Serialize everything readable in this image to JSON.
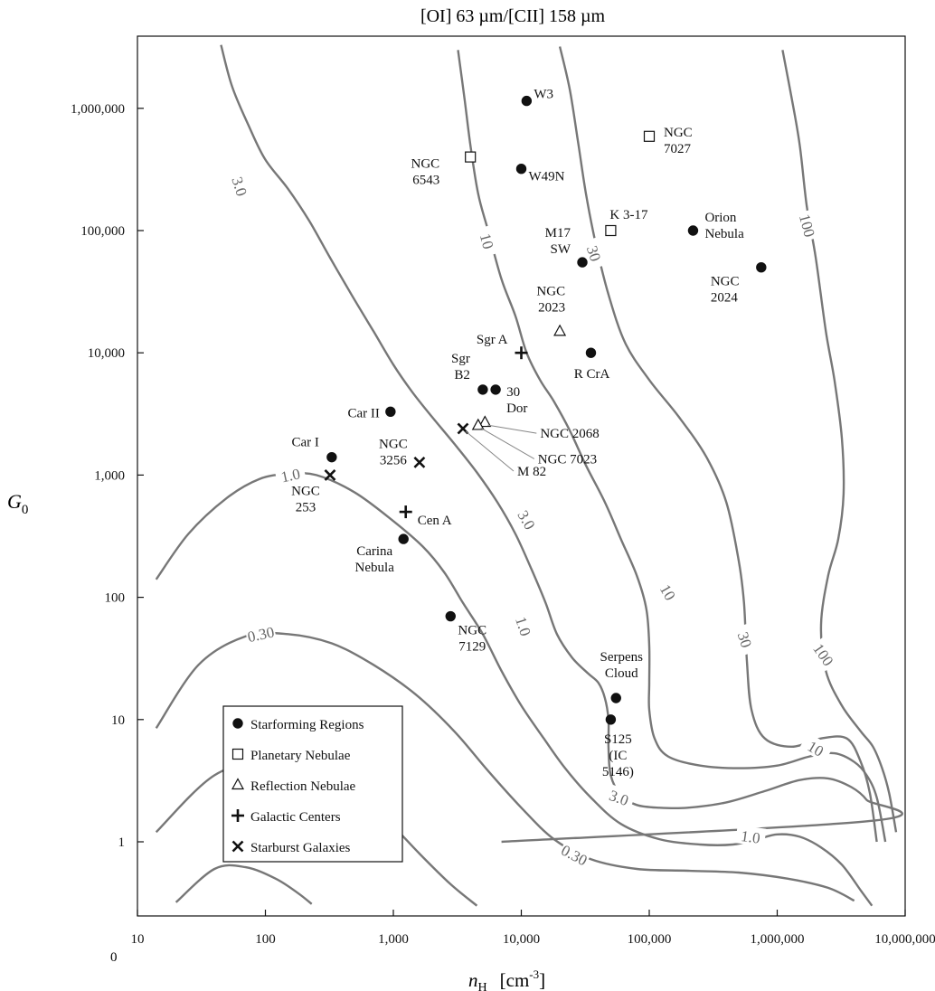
{
  "chart_data": {
    "type": "scatter",
    "title": "[OI] 63 µm/[CII] 158 µm",
    "xlabel": {
      "main": "n",
      "sub": "H",
      "units": "[cm",
      "exp": "-3",
      "close": "]"
    },
    "ylabel": {
      "main": "G",
      "sub": "0"
    },
    "x_scale": "log",
    "y_scale": "log",
    "xlim": [
      10,
      10000000
    ],
    "ylim": [
      0.3,
      3000000
    ],
    "x_ticks": [
      {
        "v": 10,
        "label": "10"
      },
      {
        "v": 100,
        "label": "100"
      },
      {
        "v": 1000,
        "label": "1,000"
      },
      {
        "v": 10000,
        "label": "10,000"
      },
      {
        "v": 100000,
        "label": "100,000"
      },
      {
        "v": 1000000,
        "label": "1,000,000"
      },
      {
        "v": 10000000,
        "label": "10,000,000"
      }
    ],
    "y_ticks": [
      {
        "v": 1,
        "label": "1"
      },
      {
        "v": 10,
        "label": "10"
      },
      {
        "v": 100,
        "label": "100"
      },
      {
        "v": 1000,
        "label": "1,000"
      },
      {
        "v": 10000,
        "label": "10,000"
      },
      {
        "v": 100000,
        "label": "100,000"
      },
      {
        "v": 1000000,
        "label": "1,000,000"
      }
    ],
    "corner_label": "0",
    "legend": {
      "placement": "bottom-left",
      "entries": [
        {
          "marker": "circle",
          "label": "Starforming Regions"
        },
        {
          "marker": "square",
          "label": "Planetary Nebulae"
        },
        {
          "marker": "triangle",
          "label": "Reflection Nebulae"
        },
        {
          "marker": "plus",
          "label": "Galactic Centers"
        },
        {
          "marker": "cross",
          "label": "Starburst Galaxies"
        }
      ]
    },
    "contours": [
      {
        "level": "0.30",
        "points": [
          [
            14,
            8.5
          ],
          [
            30,
            28
          ],
          [
            70,
            48
          ],
          [
            150,
            50
          ],
          [
            330,
            42
          ],
          [
            700,
            28
          ],
          [
            1500,
            16
          ],
          [
            3000,
            8
          ],
          [
            5500,
            3.8
          ],
          [
            10000,
            1.9
          ],
          [
            18000,
            1.05
          ],
          [
            35000,
            0.72
          ],
          [
            80000,
            0.6
          ],
          [
            200000,
            0.58
          ],
          [
            500000,
            0.56
          ],
          [
            1200000,
            0.5
          ],
          [
            2500000,
            0.42
          ],
          [
            4000000,
            0.33
          ]
        ],
        "labels": [
          {
            "at": [
              92,
              50
            ],
            "text": "0.30",
            "rot": -12
          },
          {
            "at": [
              26000,
              0.78
            ],
            "text": "0.30",
            "rot": 28
          }
        ]
      },
      {
        "level": "0.30",
        "points": [
          [
            14,
            1.2
          ],
          [
            40,
            3.5
          ],
          [
            110,
            4.6
          ],
          [
            250,
            4
          ],
          [
            500,
            2.6
          ],
          [
            900,
            1.5
          ],
          [
            1600,
            0.8
          ],
          [
            2800,
            0.45
          ],
          [
            4500,
            0.3
          ]
        ],
        "labels": []
      },
      {
        "level": "0.30",
        "points": [
          [
            20,
            0.32
          ],
          [
            40,
            0.6
          ],
          [
            70,
            0.62
          ],
          [
            120,
            0.5
          ],
          [
            180,
            0.38
          ],
          [
            230,
            0.31
          ]
        ],
        "labels": []
      },
      {
        "level": "1.0",
        "points": [
          [
            14,
            140
          ],
          [
            25,
            330
          ],
          [
            50,
            650
          ],
          [
            90,
            930
          ],
          [
            150,
            1020
          ],
          [
            250,
            1000
          ],
          [
            500,
            720
          ],
          [
            1000,
            420
          ],
          [
            1700,
            260
          ],
          [
            2500,
            160
          ],
          [
            3500,
            90
          ],
          [
            5000,
            50
          ],
          [
            7000,
            25
          ],
          [
            10000,
            13
          ],
          [
            15000,
            7
          ],
          [
            22000,
            4
          ],
          [
            35000,
            2.3
          ],
          [
            60000,
            1.4
          ],
          [
            120000,
            1.05
          ],
          [
            250000,
            0.95
          ],
          [
            450000,
            0.95
          ],
          [
            700000,
            1.05
          ],
          [
            1000000,
            1.15
          ],
          [
            1500000,
            1.1
          ],
          [
            2200000,
            0.9
          ],
          [
            3200000,
            0.65
          ],
          [
            4500000,
            0.4
          ],
          [
            5500000,
            0.3
          ]
        ],
        "labels": [
          {
            "at": [
              157,
              1000
            ],
            "text": "1.0",
            "rot": -12
          },
          {
            "at": [
              10400,
              58
            ],
            "text": "1.0",
            "rot": 72
          },
          {
            "at": [
              620000,
              1.1
            ],
            "text": "1.0",
            "rot": 8
          }
        ]
      },
      {
        "level": "3.0",
        "points": [
          [
            45,
            3300000
          ],
          [
            55,
            1500000
          ],
          [
            75,
            700000
          ],
          [
            100,
            380000
          ],
          [
            150,
            220000
          ],
          [
            220,
            120000
          ],
          [
            320,
            60000
          ],
          [
            470,
            30000
          ],
          [
            700,
            15000
          ],
          [
            1000,
            8000
          ],
          [
            1400,
            4800
          ],
          [
            2000,
            3000
          ],
          [
            3000,
            1800
          ],
          [
            4500,
            1050
          ],
          [
            6500,
            600
          ],
          [
            9000,
            330
          ],
          [
            12000,
            170
          ],
          [
            15500,
            90
          ],
          [
            19000,
            50
          ],
          [
            25000,
            32
          ],
          [
            33000,
            24
          ],
          [
            40000,
            20
          ],
          [
            45000,
            15
          ],
          [
            48000,
            10
          ],
          [
            48000,
            6
          ],
          [
            50000,
            3.5
          ],
          [
            60000,
            2.4
          ],
          [
            80000,
            2
          ],
          [
            120000,
            1.9
          ],
          [
            200000,
            1.9
          ],
          [
            400000,
            2.1
          ],
          [
            800000,
            2.6
          ],
          [
            1500000,
            3.2
          ],
          [
            2500000,
            3.3
          ],
          [
            3800000,
            2.8
          ],
          [
            5000000,
            2.2
          ],
          [
            6000000,
            1.5
          ],
          [
            7000,
            1
          ]
        ],
        "labels": [
          {
            "at": [
              63,
              230000
            ],
            "text": "3.0",
            "rot": 72
          },
          {
            "at": [
              11000,
              430
            ],
            "text": "3.0",
            "rot": 60
          },
          {
            "at": [
              58000,
              2.3
            ],
            "text": "3.0",
            "rot": 20
          }
        ]
      },
      {
        "level": "10",
        "points": [
          [
            3200,
            3000000
          ],
          [
            3600,
            1200000
          ],
          [
            4000,
            500000
          ],
          [
            4600,
            200000
          ],
          [
            5500,
            100000
          ],
          [
            7000,
            40000
          ],
          [
            9000,
            20000
          ],
          [
            11000,
            10000
          ],
          [
            14000,
            6000
          ],
          [
            18000,
            4000
          ],
          [
            24000,
            2300
          ],
          [
            32000,
            1200
          ],
          [
            45000,
            600
          ],
          [
            60000,
            300
          ],
          [
            80000,
            150
          ],
          [
            95000,
            80
          ],
          [
            100000,
            40
          ],
          [
            100000,
            20
          ],
          [
            100000,
            12
          ],
          [
            110000,
            7
          ],
          [
            140000,
            5
          ],
          [
            250000,
            4.2
          ],
          [
            500000,
            4
          ],
          [
            1000000,
            4.2
          ],
          [
            1800000,
            5
          ],
          [
            2800000,
            5.3
          ],
          [
            4000000,
            4.5
          ],
          [
            5000000,
            3.5
          ],
          [
            6000000,
            2.3
          ],
          [
            7000000,
            1
          ]
        ],
        "labels": [
          {
            "at": [
              5400,
              82000
            ],
            "text": "10",
            "rot": 75
          },
          {
            "at": [
              140000,
              110
            ],
            "text": "10",
            "rot": 60
          },
          {
            "at": [
              2000000,
              5.8
            ],
            "text": "10",
            "rot": 30
          }
        ]
      },
      {
        "level": "30",
        "points": [
          [
            20000,
            3200000
          ],
          [
            24000,
            1400000
          ],
          [
            28000,
            500000
          ],
          [
            32000,
            200000
          ],
          [
            38000,
            80000
          ],
          [
            48000,
            30000
          ],
          [
            65000,
            12000
          ],
          [
            100000,
            6000
          ],
          [
            170000,
            3000
          ],
          [
            280000,
            1400
          ],
          [
            400000,
            600
          ],
          [
            500000,
            200
          ],
          [
            550000,
            90
          ],
          [
            580000,
            30
          ],
          [
            630000,
            12
          ],
          [
            800000,
            7
          ],
          [
            1300000,
            6
          ],
          [
            2200000,
            7
          ],
          [
            3500000,
            7
          ],
          [
            4500000,
            4.5
          ],
          [
            5300000,
            2.5
          ],
          [
            6000000,
            1
          ]
        ],
        "labels": [
          {
            "at": [
              37000,
              65000
            ],
            "text": "30",
            "rot": 72
          },
          {
            "at": [
              560000,
              45
            ],
            "text": "30",
            "rot": 72
          }
        ]
      },
      {
        "level": "100",
        "points": [
          [
            1100000,
            3000000
          ],
          [
            1300000,
            1200000
          ],
          [
            1500000,
            500000
          ],
          [
            1700000,
            160000
          ],
          [
            2000000,
            60000
          ],
          [
            2400000,
            15000
          ],
          [
            2800000,
            6000
          ],
          [
            3200000,
            2000
          ],
          [
            3300000,
            700
          ],
          [
            3000000,
            300
          ],
          [
            2500000,
            150
          ],
          [
            2200000,
            60
          ],
          [
            2400000,
            25
          ],
          [
            3200000,
            13
          ],
          [
            4500000,
            8
          ],
          [
            5600000,
            6
          ],
          [
            6600000,
            4
          ],
          [
            7500000,
            2.5
          ],
          [
            8500000,
            1.2
          ]
        ],
        "labels": [
          {
            "at": [
              1720000,
              110000
            ],
            "text": "100",
            "rot": 75
          },
          {
            "at": [
              2300000,
              34
            ],
            "text": "100",
            "rot": 55
          }
        ]
      }
    ],
    "points": [
      {
        "label": "W3",
        "x": 11000,
        "y": 1150000,
        "marker": "circle",
        "lx": 8,
        "ly": -3,
        "anchor": "start"
      },
      {
        "label": "NGC\n7027",
        "x": 100000,
        "y": 590000,
        "marker": "square",
        "lx": 16,
        "ly": 0,
        "anchor": "start"
      },
      {
        "label": "NGC\n6543",
        "x": 4000,
        "y": 400000,
        "marker": "square",
        "lx": -34,
        "ly": 12,
        "anchor": "end"
      },
      {
        "label": "W49N",
        "x": 10000,
        "y": 320000,
        "marker": "circle",
        "lx": 8,
        "ly": 13,
        "anchor": "start"
      },
      {
        "label": "K 3-17",
        "x": 50000,
        "y": 100000,
        "marker": "square",
        "lx": -1,
        "ly": -13,
        "anchor": "start"
      },
      {
        "label": "Orion\nNebula",
        "x": 220000,
        "y": 100000,
        "marker": "circle",
        "lx": 13,
        "ly": -10,
        "anchor": "start"
      },
      {
        "label": "M17\nSW",
        "x": 30000,
        "y": 55000,
        "marker": "circle",
        "lx": -13,
        "ly": -28,
        "anchor": "end"
      },
      {
        "label": "NGC\n2024",
        "x": 750000,
        "y": 50000,
        "marker": "circle",
        "lx": -56,
        "ly": 20,
        "anchor": "start"
      },
      {
        "label": "NGC\n2023",
        "x": 20000,
        "y": 15000,
        "marker": "triangle",
        "lx": 6,
        "ly": -40,
        "anchor": "end"
      },
      {
        "label": "Sgr A",
        "x": 10000,
        "y": 10000,
        "marker": "plus",
        "lx": -15,
        "ly": -10,
        "anchor": "end"
      },
      {
        "label": "R CrA",
        "x": 35000,
        "y": 10000,
        "marker": "circle",
        "lx": 1,
        "ly": 28,
        "anchor": "middle"
      },
      {
        "label": "Sgr\nB2",
        "x": 5000,
        "y": 5000,
        "marker": "circle",
        "lx": -14,
        "ly": -30,
        "anchor": "end"
      },
      {
        "label": "30\nDor",
        "x": 6300,
        "y": 5000,
        "marker": "circle",
        "lx": 12,
        "ly": 7,
        "anchor": "start"
      },
      {
        "label": "Car II",
        "x": 950,
        "y": 3300,
        "marker": "circle",
        "lx": -12,
        "ly": 6,
        "anchor": "end"
      },
      {
        "label": "NGC 2068",
        "x": 5200,
        "y": 2700,
        "marker": "triangle",
        "lx": 61,
        "ly": 17,
        "anchor": "start",
        "leader": true
      },
      {
        "label": "NGC 7023",
        "x": 4600,
        "y": 2550,
        "marker": "triangle",
        "lx": 66,
        "ly": 42,
        "anchor": "start",
        "leader": true
      },
      {
        "label": "M 82",
        "x": 3500,
        "y": 2400,
        "marker": "cross",
        "lx": 60,
        "ly": 52,
        "anchor": "start",
        "leader": true
      },
      {
        "label": "Car I",
        "x": 330,
        "y": 1400,
        "marker": "circle",
        "lx": -14,
        "ly": -12,
        "anchor": "end"
      },
      {
        "label": "NGC\n3256",
        "x": 1600,
        "y": 1270,
        "marker": "cross",
        "lx": -29,
        "ly": -16,
        "anchor": "middle"
      },
      {
        "label": "NGC\n253",
        "x": 320,
        "y": 1000,
        "marker": "cross",
        "lx": -27,
        "ly": 22,
        "anchor": "middle"
      },
      {
        "label": "Cen A",
        "x": 1250,
        "y": 500,
        "marker": "plus",
        "lx": 13,
        "ly": 14,
        "anchor": "start"
      },
      {
        "label": "Carina\nNebula",
        "x": 1200,
        "y": 300,
        "marker": "circle",
        "lx": -32,
        "ly": 18,
        "anchor": "middle"
      },
      {
        "label": "NGC\n7129",
        "x": 2800,
        "y": 70,
        "marker": "circle",
        "lx": 24,
        "ly": 20,
        "anchor": "middle"
      },
      {
        "label": "Serpens\nCloud",
        "x": 55000,
        "y": 15,
        "marker": "circle",
        "lx": 6,
        "ly": -41,
        "anchor": "middle"
      },
      {
        "label": "S125\n(IC\n5146)",
        "x": 50000,
        "y": 10,
        "marker": "circle",
        "lx": 8,
        "ly": 26,
        "anchor": "middle"
      }
    ]
  }
}
